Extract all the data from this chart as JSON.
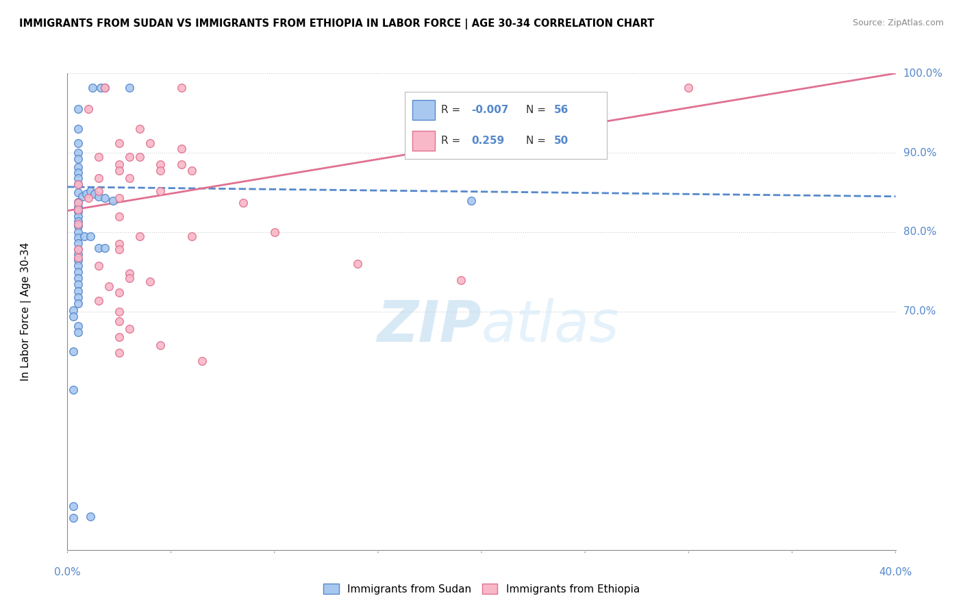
{
  "title": "IMMIGRANTS FROM SUDAN VS IMMIGRANTS FROM ETHIOPIA IN LABOR FORCE | AGE 30-34 CORRELATION CHART",
  "source": "Source: ZipAtlas.com",
  "ylabel_label": "In Labor Force | Age 30-34",
  "legend_sudan": "Immigrants from Sudan",
  "legend_ethiopia": "Immigrants from Ethiopia",
  "R_sudan": "-0.007",
  "N_sudan": "56",
  "R_ethiopia": "0.259",
  "N_ethiopia": "50",
  "xlim": [
    0.0,
    0.4
  ],
  "ylim": [
    0.4,
    1.0
  ],
  "sudan_color": "#a8c8f0",
  "ethiopia_color": "#f9b8c8",
  "sudan_line_color": "#5588cc",
  "ethiopia_line_color": "#e07090",
  "tick_color": "#5588cc",
  "watermark_zip": "ZIP",
  "watermark_atlas": "atlas",
  "sudan_points": [
    [
      0.005,
      0.955
    ],
    [
      0.012,
      0.982
    ],
    [
      0.016,
      0.982
    ],
    [
      0.018,
      0.982
    ],
    [
      0.03,
      0.982
    ],
    [
      0.005,
      0.93
    ],
    [
      0.005,
      0.912
    ],
    [
      0.005,
      0.9
    ],
    [
      0.005,
      0.892
    ],
    [
      0.005,
      0.882
    ],
    [
      0.005,
      0.875
    ],
    [
      0.005,
      0.868
    ],
    [
      0.005,
      0.86
    ],
    [
      0.005,
      0.85
    ],
    [
      0.007,
      0.845
    ],
    [
      0.009,
      0.848
    ],
    [
      0.011,
      0.852
    ],
    [
      0.013,
      0.848
    ],
    [
      0.015,
      0.845
    ],
    [
      0.018,
      0.843
    ],
    [
      0.022,
      0.84
    ],
    [
      0.005,
      0.838
    ],
    [
      0.005,
      0.832
    ],
    [
      0.005,
      0.826
    ],
    [
      0.005,
      0.82
    ],
    [
      0.005,
      0.814
    ],
    [
      0.005,
      0.808
    ],
    [
      0.005,
      0.8
    ],
    [
      0.005,
      0.793
    ],
    [
      0.008,
      0.795
    ],
    [
      0.011,
      0.795
    ],
    [
      0.005,
      0.786
    ],
    [
      0.005,
      0.778
    ],
    [
      0.015,
      0.78
    ],
    [
      0.018,
      0.78
    ],
    [
      0.005,
      0.772
    ],
    [
      0.005,
      0.765
    ],
    [
      0.005,
      0.758
    ],
    [
      0.005,
      0.75
    ],
    [
      0.005,
      0.742
    ],
    [
      0.005,
      0.734
    ],
    [
      0.005,
      0.726
    ],
    [
      0.005,
      0.718
    ],
    [
      0.005,
      0.71
    ],
    [
      0.003,
      0.702
    ],
    [
      0.003,
      0.694
    ],
    [
      0.195,
      0.84
    ],
    [
      0.005,
      0.682
    ],
    [
      0.005,
      0.674
    ],
    [
      0.003,
      0.65
    ],
    [
      0.003,
      0.602
    ],
    [
      0.003,
      0.455
    ],
    [
      0.003,
      0.44
    ],
    [
      0.011,
      0.442
    ]
  ],
  "ethiopia_points": [
    [
      0.018,
      0.982
    ],
    [
      0.055,
      0.982
    ],
    [
      0.01,
      0.955
    ],
    [
      0.035,
      0.93
    ],
    [
      0.025,
      0.912
    ],
    [
      0.04,
      0.912
    ],
    [
      0.055,
      0.905
    ],
    [
      0.015,
      0.895
    ],
    [
      0.03,
      0.895
    ],
    [
      0.035,
      0.895
    ],
    [
      0.025,
      0.885
    ],
    [
      0.045,
      0.885
    ],
    [
      0.055,
      0.885
    ],
    [
      0.025,
      0.878
    ],
    [
      0.045,
      0.878
    ],
    [
      0.06,
      0.878
    ],
    [
      0.015,
      0.868
    ],
    [
      0.03,
      0.868
    ],
    [
      0.005,
      0.86
    ],
    [
      0.015,
      0.852
    ],
    [
      0.045,
      0.852
    ],
    [
      0.01,
      0.843
    ],
    [
      0.025,
      0.843
    ],
    [
      0.005,
      0.837
    ],
    [
      0.085,
      0.837
    ],
    [
      0.005,
      0.828
    ],
    [
      0.025,
      0.82
    ],
    [
      0.005,
      0.81
    ],
    [
      0.035,
      0.795
    ],
    [
      0.06,
      0.795
    ],
    [
      0.025,
      0.785
    ],
    [
      0.005,
      0.778
    ],
    [
      0.025,
      0.778
    ],
    [
      0.005,
      0.768
    ],
    [
      0.015,
      0.758
    ],
    [
      0.03,
      0.748
    ],
    [
      0.03,
      0.742
    ],
    [
      0.04,
      0.738
    ],
    [
      0.02,
      0.732
    ],
    [
      0.025,
      0.724
    ],
    [
      0.015,
      0.714
    ],
    [
      0.025,
      0.7
    ],
    [
      0.3,
      0.982
    ],
    [
      0.1,
      0.8
    ],
    [
      0.14,
      0.76
    ],
    [
      0.19,
      0.74
    ],
    [
      0.025,
      0.688
    ],
    [
      0.03,
      0.678
    ],
    [
      0.025,
      0.668
    ],
    [
      0.045,
      0.658
    ],
    [
      0.025,
      0.648
    ],
    [
      0.065,
      0.638
    ]
  ],
  "yticks_right": [
    1.0,
    0.9,
    0.8,
    0.7
  ],
  "ytick_labels_right": [
    "100.0%",
    "90.0%",
    "80.0%",
    "70.0%"
  ]
}
